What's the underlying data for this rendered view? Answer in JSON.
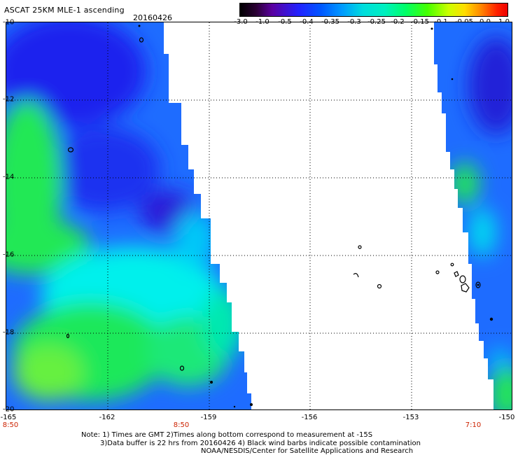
{
  "title": "ASCAT 25KM MLE-1 ascending",
  "date": "20160426",
  "colorbar": {
    "labels": [
      "-3.0",
      "-1.0",
      "-0.5",
      "-0.4",
      "-0.35",
      "-0.3",
      "-0.25",
      "-0.2",
      "-0.15",
      "-0.1",
      "-0.05",
      "0.0",
      "1.0"
    ]
  },
  "lat_labels": [
    "-10",
    "-12",
    "-14",
    "-16",
    "-18",
    "-20"
  ],
  "lon_labels": [
    "-165",
    "-162",
    "-159",
    "-156",
    "-153",
    "-150"
  ],
  "time_labels": [
    "8:50",
    "8:50",
    "7:10"
  ],
  "notes": {
    "line1": "Note: 1) Times are GMT 2)Times along bottom correspond to measurement at -15S",
    "line2": "3)Data buffer is 22 hrs from 20160426 4) Black wind barbs indicate possible contamination",
    "line3": "NOAA/NESDIS/Center for Satellite Applications and Research"
  },
  "colors": {
    "deep_blue": "#1a1aff",
    "blue": "#1e6cff",
    "light_blue": "#00b4ff",
    "cyan": "#00f4f0",
    "green": "#22ee44",
    "background": "#ffffff",
    "time_label": "#cc2200"
  }
}
